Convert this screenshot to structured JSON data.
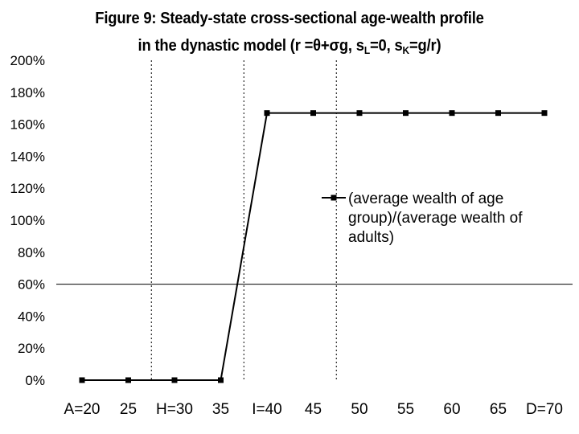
{
  "chart_data": {
    "type": "line",
    "title": "Figure 9: Steady-state cross-sectional age-wealth profile",
    "subtitle_parts": [
      "in the dynastic model (r =θ+σg, s",
      "L",
      "=0, s",
      "K",
      "=g/r)"
    ],
    "categories": [
      "A=20",
      "25",
      "H=30",
      "35",
      "I=40",
      "45",
      "50",
      "55",
      "60",
      "65",
      "D=70"
    ],
    "x": [
      20,
      25,
      30,
      35,
      40,
      45,
      50,
      55,
      60,
      65,
      70
    ],
    "series": [
      {
        "name": "(average wealth of age group)/(average wealth of adults)",
        "values": [
          0,
          0,
          0,
          0,
          1.67,
          1.67,
          1.67,
          1.67,
          1.67,
          1.67,
          1.67
        ]
      }
    ],
    "y_tick_labels": [
      "0%",
      "20%",
      "40%",
      "60%",
      "80%",
      "100%",
      "120%",
      "140%",
      "160%",
      "180%",
      "200%"
    ],
    "ylim": [
      0,
      2
    ],
    "reference_hline": 0.6,
    "dashed_vlines": [
      30,
      40,
      50
    ],
    "legend_lines": [
      "(average wealth of age",
      "group)/(average wealth of",
      "adults)"
    ],
    "legend_placement": "center-right",
    "line_color": "#000000"
  }
}
